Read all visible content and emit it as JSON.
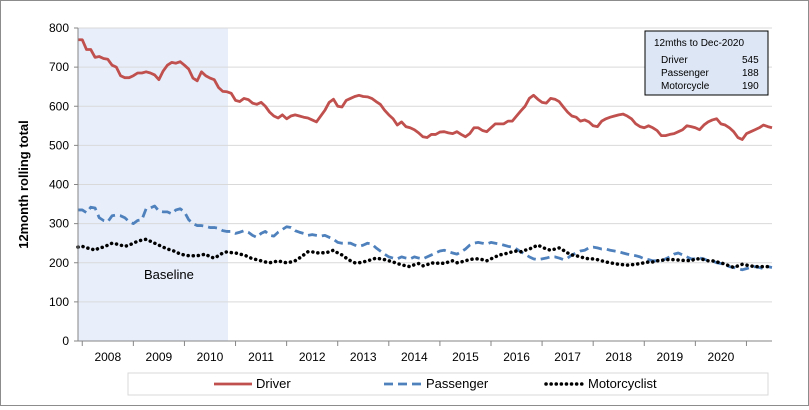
{
  "chart_data": {
    "type": "line",
    "ylabel": "12month rolling total",
    "xlabel": "",
    "ylim": [
      0,
      800
    ],
    "y_ticks": [
      "0",
      "100",
      "200",
      "300",
      "400",
      "500",
      "600",
      "700",
      "800"
    ],
    "x_tick_labels": [
      "2008",
      "2009",
      "2010",
      "2011",
      "2012",
      "2013",
      "2014",
      "2015",
      "2016",
      "2017",
      "2018",
      "2019",
      "2020"
    ],
    "start_month": "2007-12",
    "end_month": "2020-12",
    "baseline": {
      "label": "Baseline",
      "from": "2007-12",
      "to": "2010-11",
      "color": "#e8effb"
    },
    "summary_box": {
      "title": "12mths to Dec-2020",
      "rows": [
        {
          "label": "Driver",
          "value": "545"
        },
        {
          "label": "Passenger",
          "value": "188"
        },
        {
          "label": "Motorcycle",
          "value": "190"
        }
      ]
    },
    "legend_position": "bottom",
    "series": [
      {
        "name": "Driver",
        "color": "#c0504d",
        "style": "solid",
        "values": [
          770,
          770,
          745,
          745,
          725,
          727,
          722,
          720,
          705,
          700,
          678,
          673,
          673,
          678,
          685,
          685,
          688,
          685,
          680,
          668,
          690,
          705,
          712,
          710,
          714,
          705,
          695,
          672,
          665,
          688,
          678,
          672,
          668,
          648,
          638,
          637,
          633,
          615,
          612,
          620,
          617,
          608,
          605,
          610,
          600,
          585,
          575,
          570,
          578,
          568,
          575,
          578,
          575,
          572,
          570,
          565,
          560,
          575,
          590,
          610,
          618,
          600,
          598,
          615,
          620,
          625,
          628,
          625,
          624,
          620,
          612,
          605,
          590,
          578,
          568,
          552,
          560,
          548,
          545,
          540,
          532,
          522,
          520,
          528,
          528,
          534,
          535,
          532,
          530,
          535,
          528,
          522,
          530,
          545,
          545,
          538,
          535,
          545,
          555,
          555,
          555,
          562,
          562,
          575,
          588,
          600,
          620,
          628,
          618,
          610,
          608,
          620,
          618,
          612,
          598,
          585,
          575,
          572,
          562,
          565,
          560,
          550,
          548,
          562,
          568,
          572,
          575,
          578,
          580,
          575,
          568,
          555,
          548,
          545,
          550,
          545,
          538,
          525,
          525,
          528,
          530,
          535,
          540,
          550,
          548,
          545,
          540,
          552,
          560,
          565,
          568,
          555,
          552,
          545,
          535,
          520,
          515,
          530,
          535,
          540,
          545,
          552,
          548,
          545
        ]
      },
      {
        "name": "Passenger",
        "color": "#4f81bd",
        "style": "dashed",
        "values": [
          335,
          335,
          328,
          342,
          340,
          315,
          308,
          305,
          320,
          322,
          320,
          315,
          305,
          300,
          308,
          310,
          338,
          340,
          345,
          332,
          330,
          330,
          325,
          335,
          338,
          330,
          310,
          300,
          295,
          295,
          293,
          290,
          290,
          288,
          282,
          280,
          280,
          275,
          278,
          282,
          278,
          270,
          265,
          275,
          280,
          270,
          268,
          278,
          285,
          292,
          290,
          282,
          278,
          275,
          270,
          272,
          270,
          268,
          270,
          265,
          260,
          252,
          250,
          250,
          250,
          245,
          242,
          245,
          250,
          248,
          238,
          230,
          222,
          215,
          212,
          210,
          215,
          212,
          210,
          215,
          212,
          210,
          215,
          220,
          225,
          230,
          232,
          228,
          225,
          222,
          228,
          235,
          245,
          250,
          252,
          250,
          248,
          252,
          250,
          248,
          245,
          242,
          240,
          235,
          228,
          222,
          215,
          210,
          208,
          210,
          212,
          215,
          215,
          212,
          208,
          212,
          220,
          225,
          230,
          232,
          238,
          240,
          238,
          235,
          235,
          232,
          230,
          228,
          225,
          222,
          220,
          218,
          215,
          210,
          208,
          205,
          205,
          205,
          210,
          215,
          222,
          225,
          220,
          215,
          210,
          210,
          212,
          210,
          205,
          205,
          200,
          198,
          195,
          190,
          188,
          185,
          182,
          185,
          188,
          190,
          188,
          185,
          190,
          188
        ]
      },
      {
        "name": "Motorcyclist",
        "color": "#000000",
        "style": "dotted",
        "values": [
          240,
          242,
          238,
          236,
          232,
          238,
          240,
          245,
          250,
          248,
          245,
          242,
          245,
          250,
          255,
          258,
          260,
          255,
          250,
          245,
          240,
          235,
          232,
          228,
          222,
          220,
          218,
          218,
          218,
          220,
          222,
          215,
          212,
          218,
          225,
          228,
          226,
          225,
          222,
          220,
          215,
          210,
          208,
          205,
          202,
          200,
          202,
          205,
          202,
          200,
          202,
          205,
          212,
          220,
          228,
          228,
          225,
          226,
          225,
          228,
          232,
          225,
          220,
          212,
          205,
          200,
          200,
          202,
          205,
          208,
          212,
          210,
          208,
          205,
          202,
          198,
          195,
          192,
          190,
          195,
          198,
          192,
          195,
          200,
          198,
          200,
          198,
          202,
          205,
          200,
          202,
          205,
          208,
          210,
          210,
          208,
          205,
          210,
          215,
          220,
          222,
          225,
          228,
          230,
          228,
          232,
          235,
          240,
          245,
          240,
          235,
          232,
          235,
          238,
          232,
          225,
          220,
          218,
          215,
          212,
          210,
          210,
          208,
          205,
          202,
          200,
          198,
          196,
          195,
          194,
          195,
          196,
          198,
          200,
          202,
          202,
          205,
          206,
          208,
          208,
          208,
          207,
          206,
          206,
          205,
          210,
          210,
          208,
          205,
          205,
          202,
          200,
          196,
          192,
          188,
          192,
          196,
          194,
          192,
          190,
          190,
          190,
          190,
          190
        ]
      }
    ]
  }
}
